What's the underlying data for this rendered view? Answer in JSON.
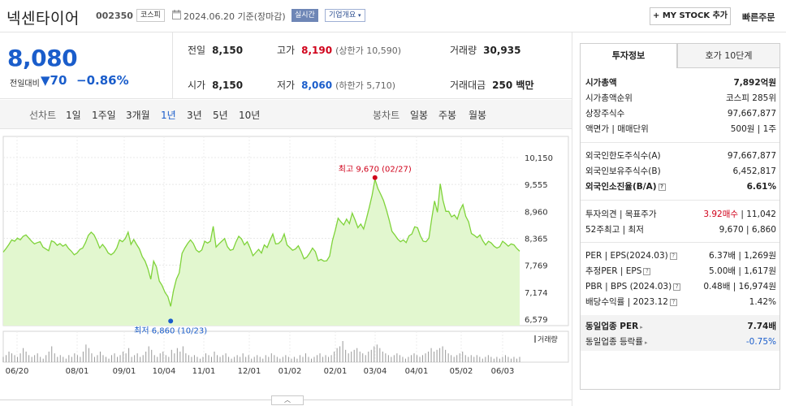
{
  "header": {
    "stock_name": "넥센타이어",
    "stock_code": "002350",
    "market": "코스피",
    "date": "2024.06.20  기준(장마감)",
    "realtime": "실시간",
    "company_info": "기업개요",
    "company_info_icon": "chevron-down-icon",
    "my_stock": "+ MY STOCK 추가",
    "quick_order": "빠른주문"
  },
  "quote": {
    "price": "8,080",
    "vs_label": "전일대비",
    "change": "▼70",
    "change_pct": "−0.86%",
    "prev_close": {
      "label": "전일",
      "value": "8,150"
    },
    "high": {
      "label": "고가",
      "value": "8,190",
      "sub": "(상한가 10,590)"
    },
    "volume": {
      "label": "거래량",
      "value": "30,935"
    },
    "open": {
      "label": "시가",
      "value": "8,150"
    },
    "low": {
      "label": "저가",
      "value": "8,060",
      "sub": "(하한가 5,710)"
    },
    "amount": {
      "label": "거래대금",
      "value": "250 백만"
    },
    "up_color": "#d0021b",
    "down_color": "#1a5dcb"
  },
  "tabs": {
    "line_label": "선차트",
    "line_periods": [
      "1일",
      "1주일",
      "3개월",
      "1년",
      "3년",
      "5년",
      "10년"
    ],
    "selected": "1년",
    "candle_label": "봉차트",
    "candle_periods": [
      "일봉",
      "주봉",
      "월봉"
    ]
  },
  "chart_data": {
    "type": "area",
    "title": "",
    "y_ticks": [
      "10,150",
      "9,555",
      "8,960",
      "8,365",
      "7,769",
      "7,174",
      "6,579"
    ],
    "ylim": [
      6579,
      10150
    ],
    "x_ticks": [
      "06/20",
      "08/01",
      "09/01",
      "10/04",
      "11/01",
      "12/01",
      "01/02",
      "02/01",
      "03/04",
      "04/01",
      "05/02",
      "06/03"
    ],
    "high_annotation": "최고 9,670 (02/27)",
    "low_annotation": "최저 6,860 (10/23)",
    "volume_label": "거래량",
    "line_color": "#7fd33a",
    "fill_color": "#e2f7cf",
    "high_color": "#d0021b",
    "low_color": "#1a5dcb",
    "series": [
      {
        "values": [
          8060,
          8140,
          8230,
          8330,
          8300,
          8370,
          8330,
          8410,
          8440,
          8370,
          8300,
          8240,
          8270,
          8290,
          8170,
          8130,
          8090,
          8310,
          8280,
          8210,
          8250,
          8190,
          8230,
          8140,
          8080,
          8000,
          8040,
          8120,
          8150,
          8270,
          8430,
          8500,
          8440,
          8310,
          8150,
          8230,
          8150,
          8040,
          8000,
          8050,
          8150,
          8330,
          8290,
          8360,
          8500,
          8230,
          8340,
          8230,
          8130,
          7960,
          7860,
          7690,
          7460,
          7860,
          7730,
          7420,
          7320,
          7170,
          7080,
          6860,
          7210,
          7460,
          7600,
          8030,
          8150,
          8250,
          8330,
          8250,
          8110,
          8060,
          8110,
          8300,
          8260,
          8300,
          8630,
          8170,
          8240,
          8300,
          8360,
          8180,
          8100,
          8120,
          8280,
          8410,
          8350,
          8220,
          8290,
          8150,
          7980,
          8050,
          8120,
          8040,
          8220,
          8160,
          8320,
          8460,
          8240,
          8250,
          8310,
          8460,
          8220,
          8160,
          8100,
          8130,
          8200,
          8070,
          7910,
          7950,
          8040,
          8150,
          8070,
          7870,
          7900,
          7860,
          7870,
          7970,
          8310,
          8540,
          8810,
          8730,
          8660,
          8790,
          8690,
          8920,
          8770,
          8600,
          8680,
          8570,
          8800,
          9050,
          9320,
          9670,
          9470,
          9340,
          9200,
          9000,
          8770,
          8520,
          8440,
          8350,
          8290,
          8330,
          8270,
          8420,
          8460,
          8620,
          8600,
          8420,
          8300,
          8290,
          8370,
          8800,
          9190,
          8940,
          9570,
          9200,
          8960,
          8960,
          8840,
          8880,
          8790,
          8990,
          9110,
          8850,
          8730,
          8470,
          8430,
          8380,
          8440,
          8310,
          8220,
          8300,
          8260,
          8190,
          8150,
          8180,
          8300,
          8250,
          8190,
          8240,
          8220,
          8140,
          8080
        ]
      }
    ],
    "volume_values": [
      3,
      4,
      6,
      5,
      4,
      3,
      5,
      8,
      6,
      4,
      3,
      4,
      5,
      3,
      2,
      4,
      6,
      9,
      5,
      3,
      4,
      3,
      2,
      4,
      3,
      5,
      4,
      3,
      6,
      10,
      8,
      5,
      3,
      4,
      6,
      4,
      3,
      2,
      4,
      5,
      3,
      4,
      6,
      5,
      8,
      3,
      4,
      5,
      3,
      4,
      6,
      9,
      7,
      4,
      3,
      5,
      6,
      4,
      3,
      7,
      5,
      8,
      6,
      9,
      5,
      4,
      3,
      4,
      3,
      2,
      3,
      5,
      4,
      3,
      6,
      4,
      3,
      4,
      5,
      3,
      2,
      3,
      4,
      3,
      5,
      3,
      4,
      2,
      3,
      4,
      3,
      2,
      4,
      3,
      5,
      4,
      3,
      2,
      3,
      4,
      3,
      2,
      3,
      2,
      4,
      3,
      5,
      3,
      2,
      3,
      4,
      5,
      3,
      4,
      3,
      4,
      6,
      8,
      9,
      12,
      7,
      5,
      6,
      7,
      8,
      6,
      5,
      4,
      6,
      7,
      9,
      10,
      8,
      6,
      5,
      4,
      3,
      4,
      5,
      4,
      3,
      2,
      3,
      4,
      5,
      4,
      3,
      4,
      5,
      6,
      8,
      6,
      7,
      8,
      9,
      7,
      5,
      4,
      3,
      4,
      5,
      6,
      4,
      3,
      4,
      3,
      4,
      3,
      2,
      3,
      4,
      3,
      2,
      3,
      2,
      3,
      4,
      3,
      2,
      3,
      2,
      3
    ]
  },
  "panel": {
    "tab_active": "투자정보",
    "tab_inactive": "호가 10단계",
    "rows1": [
      {
        "k": "시가총액",
        "v": "7,892억원",
        "bold": true
      },
      {
        "k": "시가총액순위",
        "v": "코스피 285위"
      },
      {
        "k": "상장주식수",
        "v": "97,667,877"
      },
      {
        "k": "액면가 | 매매단위",
        "v": "500원 | 1주"
      }
    ],
    "rows2": [
      {
        "k": "외국인한도주식수(A)",
        "v": "97,667,877"
      },
      {
        "k": "외국인보유주식수(B)",
        "v": "6,452,817"
      },
      {
        "k": "외국인소진율(B/A)",
        "v": "6.61%",
        "bold": true
      }
    ],
    "opinion_label": "투자의견 | 목표주가",
    "opinion_value": "3.92매수",
    "target_price": "11,042",
    "high52_label": "52주최고 | 최저",
    "high52_value": "9,670 | 6,860",
    "per_label": "PER | EPS(2024.03)",
    "per_value": "6.37배 | 1,269원",
    "est_per_label": "추정PER | EPS",
    "est_per_value": "5.00배 | 1,617원",
    "pbr_label": "PBR | BPS (2024.03)",
    "pbr_value": "0.48배 | 16,974원",
    "div_label": "배당수익률 | 2023.12",
    "div_value": "1.42%",
    "industry_per_label": "동일업종 PER",
    "industry_per_value": "7.74배",
    "industry_rate_label": "동일업종 등락률",
    "industry_rate_value": "-0.75%"
  }
}
